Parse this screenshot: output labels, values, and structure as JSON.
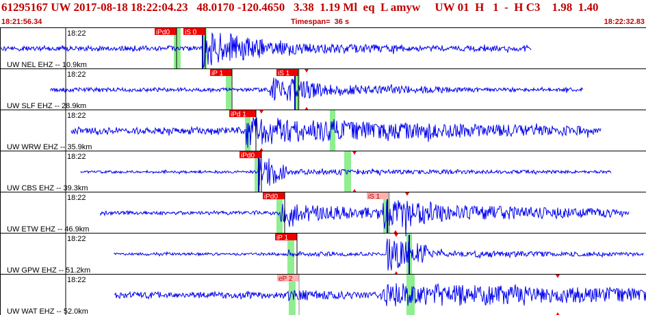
{
  "header": {
    "title": "61295167 UW 2017-08-18 18:22:04.23   48.0170 -120.4650   3.38  1.19 Ml  eq  L amyw     UW 01  H   1  -  H C3    1.98  1.40",
    "start_time": "18:21:56.34",
    "timespan": "Timespan=  36 s",
    "end_time": "18:22:32.83"
  },
  "colors": {
    "trace": "#0000ee",
    "pick_bg": "#ee0000",
    "pick_bg_light": "#ffb0b0",
    "pick_text": "#ffffff",
    "pick_text_dark": "#c00000",
    "pick_zone": "#90ee90",
    "marker": "#ff0000",
    "divider": "#000000",
    "label": "#000000"
  },
  "channels": [
    {
      "tick_label": "18:22",
      "station_label": "UW NEL EHZ -- 10.9km",
      "picks": [
        {
          "label": "iPd0",
          "style": "solid"
        },
        {
          "label": "iS 0",
          "style": "solid"
        }
      ]
    },
    {
      "tick_label": "18:22",
      "station_label": "UW SLF EHZ -- 28.9km",
      "picks": [
        {
          "label": "iP 1",
          "style": "solid"
        },
        {
          "label": "iS 1",
          "style": "solid"
        }
      ]
    },
    {
      "tick_label": "18:22",
      "station_label": "UW WRW EHZ -- 35.9km",
      "picks": [
        {
          "label": "iPd 1",
          "style": "solid"
        }
      ]
    },
    {
      "tick_label": "18:22",
      "station_label": "UW CBS EHZ -- 39.3km",
      "picks": [
        {
          "label": "iPd0",
          "style": "solid"
        }
      ]
    },
    {
      "tick_label": "18:22",
      "station_label": "UW ETW EHZ -- 46.9km",
      "picks": [
        {
          "label": "iPd0",
          "style": "solid"
        },
        {
          "label": "iS 1",
          "style": "light"
        }
      ]
    },
    {
      "tick_label": "18:22",
      "station_label": "UW GPW EHZ -- 51.2km",
      "picks": [
        {
          "label": "iP 1",
          "style": "solid"
        }
      ]
    },
    {
      "tick_label": "18:22",
      "station_label": "UW WAT EHZ -- 52.0km",
      "picks": [
        {
          "label": "eP 2",
          "style": "light"
        }
      ]
    }
  ]
}
